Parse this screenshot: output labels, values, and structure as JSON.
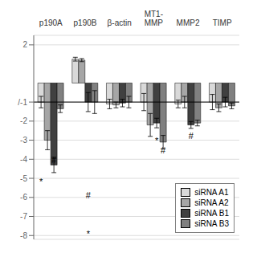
{
  "chart_data": {
    "type": "bar",
    "categories": [
      "p190A",
      "p190B",
      "β-actin",
      "MT1-\nMMP",
      "MMP2",
      "TIMP"
    ],
    "series": [
      {
        "name": "siRNA A1",
        "color": "#d9d9d9",
        "values": [
          -1.0,
          1.25,
          -1.1,
          -1.0,
          -1.1,
          -1.0
        ],
        "errors": [
          0.3,
          0.1,
          0.25,
          0.45,
          0.2,
          0.4
        ]
      },
      {
        "name": "siRNA A2",
        "color": "#a6a6a6",
        "values": [
          -3.0,
          1.2,
          -1.15,
          -2.2,
          -1.0,
          -1.3
        ],
        "errors": [
          0.5,
          0.08,
          0.15,
          0.6,
          0.3,
          0.2
        ]
      },
      {
        "name": "siRNA B1",
        "color": "#404040",
        "values": [
          -4.3,
          -1.0,
          -1.05,
          -2.1,
          -2.2,
          -1.0
        ],
        "errors": [
          0.4,
          0.5,
          0.2,
          0.25,
          0.18,
          0.25
        ]
      },
      {
        "name": "siRNA B3",
        "color": "#808080",
        "values": [
          -1.35,
          -1.0,
          -1.0,
          -3.1,
          -2.1,
          -1.2
        ],
        "errors": [
          0.2,
          0.6,
          0.3,
          0.35,
          0.15,
          0.15
        ]
      }
    ],
    "ylim": [
      -8.2,
      2.5
    ],
    "yticks": [
      2,
      {
        "value": -1,
        "label": "/-1"
      },
      -2,
      -3,
      -4,
      -5,
      -6,
      -7,
      -8
    ],
    "grid": true,
    "legend": "lower right",
    "reference_lines": [
      -1
    ],
    "annotations": [
      {
        "text": "*",
        "category": "p190A",
        "series": "siRNA A1",
        "y": -5.0
      },
      {
        "text": "#",
        "category": "p190A",
        "series": "siRNA B1",
        "y": -3.85
      },
      {
        "text": "#",
        "category": "p190B",
        "series": "siRNA B1",
        "y": -5.7
      },
      {
        "text": "*",
        "category": "p190B",
        "series": "siRNA B1",
        "y": -7.75
      },
      {
        "text": "*",
        "category": "MT1-\nMMP",
        "series": "siRNA B1",
        "y": -2.85
      },
      {
        "text": "#",
        "category": "MT1-\nMMP",
        "series": "siRNA B3",
        "y": -3.35
      },
      {
        "text": "#",
        "category": "MMP2",
        "series": "siRNA B1",
        "y": -2.6
      }
    ]
  }
}
